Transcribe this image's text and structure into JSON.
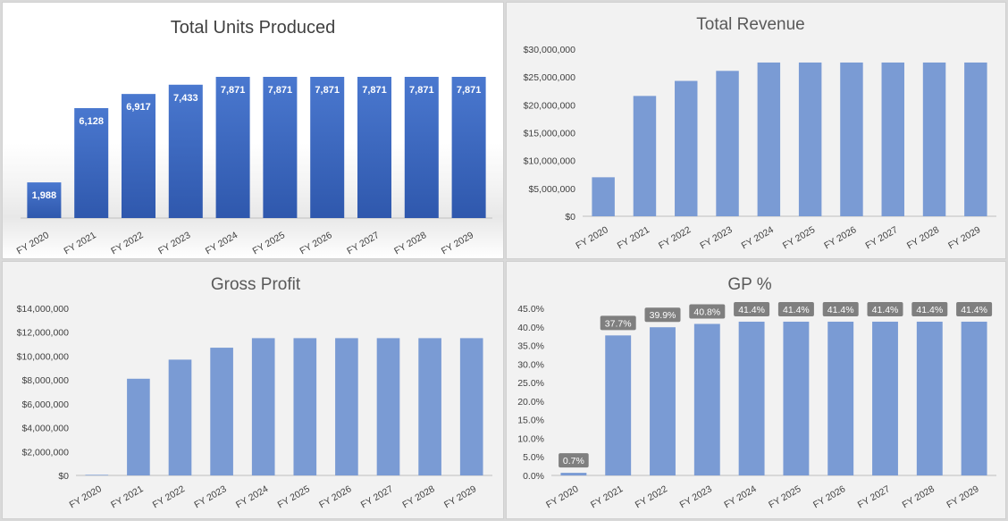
{
  "colors": {
    "bar_light": "#7a9bd4",
    "bar_dark_top": "#4a78cf",
    "bar_dark_bottom": "#2f58ad",
    "label_box": "#7f7f7f",
    "axis_line": "#bfbfbf"
  },
  "chart_data": [
    {
      "id": "units",
      "type": "bar",
      "title": "Total Units Produced",
      "categories": [
        "FY 2020",
        "FY 2021",
        "FY 2022",
        "FY 2023",
        "FY 2024",
        "FY 2025",
        "FY 2026",
        "FY 2027",
        "FY 2028",
        "FY 2029"
      ],
      "values": [
        1988,
        6128,
        6917,
        7433,
        7871,
        7871,
        7871,
        7871,
        7871,
        7871
      ],
      "data_labels": [
        "1,988",
        "6,128",
        "6,917",
        "7,433",
        "7,871",
        "7,871",
        "7,871",
        "7,871",
        "7,871",
        "7,871"
      ],
      "ylim": [
        0,
        7871
      ],
      "yticks": [],
      "ytick_labels": [],
      "grid": false,
      "legend": "none"
    },
    {
      "id": "revenue",
      "type": "bar",
      "title": "Total Revenue",
      "categories": [
        "FY 2020",
        "FY 2021",
        "FY 2022",
        "FY 2023",
        "FY 2024",
        "FY 2025",
        "FY 2026",
        "FY 2027",
        "FY 2028",
        "FY 2029"
      ],
      "values": [
        7000000,
        21600000,
        24300000,
        26100000,
        27600000,
        27600000,
        27600000,
        27600000,
        27600000,
        27600000
      ],
      "data_labels": [],
      "ylim": [
        0,
        30000000
      ],
      "yticks": [
        0,
        5000000,
        10000000,
        15000000,
        20000000,
        25000000,
        30000000
      ],
      "ytick_labels": [
        "$0",
        "$5,000,000",
        "$10,000,000",
        "$15,000,000",
        "$20,000,000",
        "$25,000,000",
        "$30,000,000"
      ],
      "grid": false,
      "legend": "none"
    },
    {
      "id": "gross",
      "type": "bar",
      "title": "Gross Profit",
      "categories": [
        "FY 2020",
        "FY 2021",
        "FY 2022",
        "FY 2023",
        "FY 2024",
        "FY 2025",
        "FY 2026",
        "FY 2027",
        "FY 2028",
        "FY 2029"
      ],
      "values": [
        50000,
        8100000,
        9700000,
        10700000,
        11500000,
        11500000,
        11500000,
        11500000,
        11500000,
        11500000
      ],
      "data_labels": [],
      "ylim": [
        0,
        14000000
      ],
      "yticks": [
        0,
        2000000,
        4000000,
        6000000,
        8000000,
        10000000,
        12000000,
        14000000
      ],
      "ytick_labels": [
        "$0",
        "$2,000,000",
        "$4,000,000",
        "$6,000,000",
        "$8,000,000",
        "$10,000,000",
        "$12,000,000",
        "$14,000,000"
      ],
      "grid": false,
      "legend": "none"
    },
    {
      "id": "gp",
      "type": "bar",
      "title": "GP %",
      "categories": [
        "FY 2020",
        "FY 2021",
        "FY 2022",
        "FY 2023",
        "FY 2024",
        "FY 2025",
        "FY 2026",
        "FY 2027",
        "FY 2028",
        "FY 2029"
      ],
      "values": [
        0.7,
        37.7,
        39.9,
        40.8,
        41.4,
        41.4,
        41.4,
        41.4,
        41.4,
        41.4
      ],
      "data_labels": [
        "0.7%",
        "37.7%",
        "39.9%",
        "40.8%",
        "41.4%",
        "41.4%",
        "41.4%",
        "41.4%",
        "41.4%",
        "41.4%"
      ],
      "ylim": [
        0,
        45
      ],
      "yticks": [
        0,
        5,
        10,
        15,
        20,
        25,
        30,
        35,
        40,
        45
      ],
      "ytick_labels": [
        "0.0%",
        "5.0%",
        "10.0%",
        "15.0%",
        "20.0%",
        "25.0%",
        "30.0%",
        "35.0%",
        "40.0%",
        "45.0%"
      ],
      "grid": false,
      "legend": "none"
    }
  ]
}
